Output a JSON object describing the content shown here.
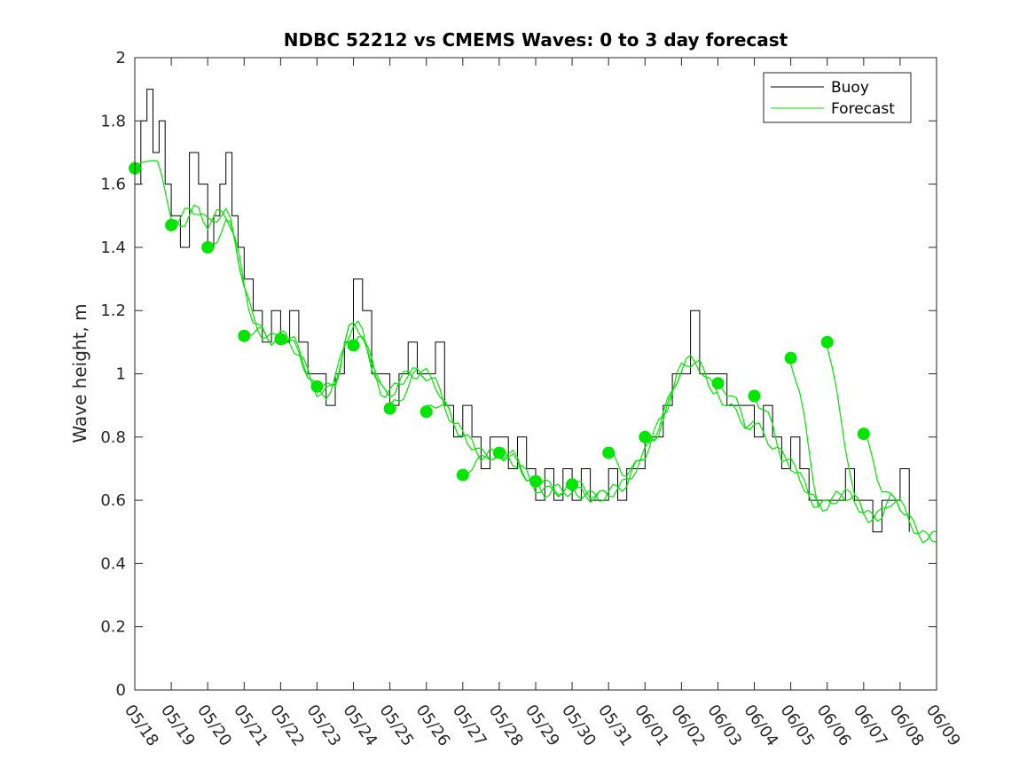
{
  "chart_data": {
    "type": "line",
    "title": "NDBC 52212 vs CMEMS Waves: 0 to 3 day forecast",
    "xlabel": "",
    "ylabel": "Wave height, m",
    "x_tick_labels": [
      "05/18",
      "05/19",
      "05/20",
      "05/21",
      "05/22",
      "05/23",
      "05/24",
      "05/25",
      "05/26",
      "05/27",
      "05/28",
      "05/29",
      "05/30",
      "05/31",
      "06/01",
      "06/02",
      "06/03",
      "06/04",
      "06/05",
      "06/06",
      "06/07",
      "06/08",
      "06/09"
    ],
    "y_ticks": [
      0,
      0.2,
      0.4,
      0.6,
      0.8,
      1,
      1.2,
      1.4,
      1.6,
      1.8,
      2
    ],
    "y_tick_labels": [
      "0",
      "0.2",
      "0.4",
      "0.6",
      "0.8",
      "1",
      "1.2",
      "1.4",
      "1.6",
      "1.8",
      "2"
    ],
    "xlim": [
      "05/18",
      "06/09"
    ],
    "ylim": [
      0,
      2
    ],
    "grid": false,
    "legend_position": "top-right",
    "colors": {
      "buoy": "#000000",
      "forecast": "#00e600"
    },
    "series": [
      {
        "name": "Buoy",
        "color": "#000000",
        "x": [
          "05/18",
          "05/18 04:00",
          "05/18 08:00",
          "05/18 12:00",
          "05/18 16:00",
          "05/18 20:00",
          "05/19",
          "05/19 06:00",
          "05/19 12:00",
          "05/19 18:00",
          "05/20",
          "05/20 04:00",
          "05/20 08:00",
          "05/20 12:00",
          "05/20 16:00",
          "05/20 20:00",
          "05/21",
          "05/21 06:00",
          "05/21 12:00",
          "05/21 18:00",
          "05/22",
          "05/22 06:00",
          "05/22 12:00",
          "05/22 18:00",
          "05/23",
          "05/23 06:00",
          "05/23 12:00",
          "05/23 18:00",
          "05/24",
          "05/24 06:00",
          "05/24 12:00",
          "05/24 18:00",
          "05/25",
          "05/25 06:00",
          "05/25 12:00",
          "05/25 18:00",
          "05/26",
          "05/26 06:00",
          "05/26 12:00",
          "05/26 18:00",
          "05/27",
          "05/27 06:00",
          "05/27 12:00",
          "05/27 18:00",
          "05/28",
          "05/28 06:00",
          "05/28 12:00",
          "05/28 18:00",
          "05/29",
          "05/29 06:00",
          "05/29 12:00",
          "05/29 18:00",
          "05/30",
          "05/30 06:00",
          "05/30 12:00",
          "05/30 18:00",
          "05/31",
          "05/31 06:00",
          "05/31 12:00",
          "05/31 18:00",
          "06/01",
          "06/01 06:00",
          "06/01 12:00",
          "06/01 18:00",
          "06/02",
          "06/02 06:00",
          "06/02 12:00",
          "06/02 18:00",
          "06/03",
          "06/03 06:00",
          "06/03 12:00",
          "06/03 18:00",
          "06/04",
          "06/04 06:00",
          "06/04 12:00",
          "06/04 18:00",
          "06/05",
          "06/05 06:00",
          "06/05 12:00",
          "06/05 18:00",
          "06/06",
          "06/06 06:00",
          "06/06 12:00",
          "06/06 18:00",
          "06/07",
          "06/07 06:00",
          "06/07 12:00",
          "06/07 18:00",
          "06/08",
          "06/08 06:00"
        ],
        "y": [
          1.6,
          1.8,
          1.9,
          1.7,
          1.8,
          1.6,
          1.5,
          1.4,
          1.7,
          1.6,
          1.4,
          1.5,
          1.6,
          1.7,
          1.5,
          1.4,
          1.3,
          1.2,
          1.1,
          1.2,
          1.1,
          1.2,
          1.1,
          1.0,
          1.0,
          0.9,
          1.0,
          1.1,
          1.3,
          1.2,
          1.0,
          1.0,
          0.9,
          1.0,
          1.1,
          1.0,
          1.0,
          1.1,
          0.9,
          0.8,
          0.9,
          0.8,
          0.7,
          0.8,
          0.8,
          0.7,
          0.8,
          0.7,
          0.6,
          0.7,
          0.6,
          0.7,
          0.6,
          0.7,
          0.6,
          0.6,
          0.7,
          0.6,
          0.7,
          0.7,
          0.8,
          0.8,
          0.9,
          1.0,
          1.0,
          1.2,
          1.0,
          1.0,
          1.0,
          0.9,
          0.9,
          0.9,
          0.8,
          0.9,
          0.8,
          0.7,
          0.8,
          0.7,
          0.6,
          0.6,
          0.6,
          0.6,
          0.7,
          0.6,
          0.6,
          0.5,
          0.6,
          0.6,
          0.7,
          0.5
        ]
      },
      {
        "name": "Forecast",
        "color": "#00e600",
        "forecast_start_x": [
          "05/18",
          "05/19",
          "05/20",
          "05/21",
          "05/22",
          "05/23",
          "05/24",
          "05/25",
          "05/26",
          "05/27",
          "05/28",
          "05/29",
          "05/30",
          "05/31",
          "06/01",
          "06/03",
          "06/04",
          "06/05",
          "06/06",
          "06/07"
        ],
        "forecast_start_y": [
          1.65,
          1.47,
          1.4,
          1.12,
          1.11,
          0.96,
          1.09,
          0.89,
          0.88,
          0.68,
          0.75,
          0.66,
          0.65,
          0.75,
          0.8,
          0.97,
          0.93,
          1.05,
          1.1,
          0.81
        ]
      }
    ]
  }
}
